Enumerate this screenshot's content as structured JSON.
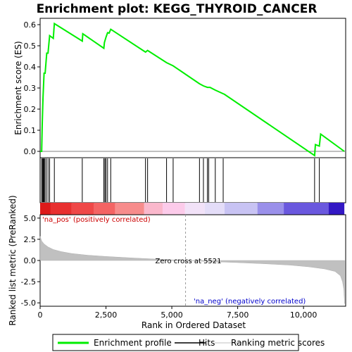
{
  "chart_data": {
    "type": "line",
    "title": "Enrichment plot: KEGG_THYROID_CANCER",
    "xlabel": "Rank in Ordered Dataset",
    "xlim": [
      0,
      11600
    ],
    "x_ticks": [
      0,
      2500,
      5000,
      7500,
      10000
    ],
    "x_tick_labels": [
      "0",
      "2,500",
      "5,000",
      "7,500",
      "10,000"
    ],
    "es_panel": {
      "ylabel": "Enrichment score (ES)",
      "ylim": [
        -0.03,
        0.63
      ],
      "y_ticks": [
        0.0,
        0.1,
        0.2,
        0.3,
        0.4,
        0.5,
        0.6
      ],
      "y_tick_labels": [
        "0.0",
        "0.1",
        "0.2",
        "0.3",
        "0.4",
        "0.5",
        "0.6"
      ],
      "series_color": "#00ee00",
      "points": [
        [
          0,
          0.0
        ],
        [
          60,
          0.0
        ],
        [
          80,
          0.13
        ],
        [
          110,
          0.255
        ],
        [
          150,
          0.37
        ],
        [
          190,
          0.37
        ],
        [
          250,
          0.465
        ],
        [
          300,
          0.465
        ],
        [
          360,
          0.548
        ],
        [
          500,
          0.535
        ],
        [
          540,
          0.605
        ],
        [
          1600,
          0.522
        ],
        [
          1620,
          0.557
        ],
        [
          2420,
          0.488
        ],
        [
          2440,
          0.515
        ],
        [
          2500,
          0.54
        ],
        [
          2560,
          0.562
        ],
        [
          2620,
          0.56
        ],
        [
          2680,
          0.578
        ],
        [
          4000,
          0.47
        ],
        [
          4080,
          0.478
        ],
        [
          4800,
          0.42
        ],
        [
          5050,
          0.405
        ],
        [
          6050,
          0.32
        ],
        [
          6200,
          0.31
        ],
        [
          6350,
          0.303
        ],
        [
          6450,
          0.303
        ],
        [
          6650,
          0.29
        ],
        [
          6950,
          0.273
        ],
        [
          7000,
          0.27
        ],
        [
          10420,
          -0.02
        ],
        [
          10450,
          0.032
        ],
        [
          10600,
          0.025
        ],
        [
          10650,
          0.082
        ],
        [
          11550,
          0.0
        ]
      ]
    },
    "hits": [
      60,
      90,
      120,
      150,
      180,
      230,
      300,
      360,
      540,
      1600,
      2420,
      2460,
      2500,
      2560,
      2680,
      4000,
      4080,
      4800,
      5050,
      6050,
      6200,
      6350,
      6400,
      6650,
      6950,
      10420,
      10600
    ],
    "ranking_panel": {
      "ylabel": "Ranked list metric (PreRanked)",
      "ylim": [
        -5.4,
        5.4
      ],
      "y_ticks": [
        5.0,
        2.5,
        0.0,
        -2.5,
        -5.0
      ],
      "y_tick_labels": [
        "5.0",
        "2.5",
        "0.0",
        "-2.5",
        "-5.0"
      ],
      "fill_color": "#c0c0c0",
      "curve": [
        [
          0,
          2.85
        ],
        [
          60,
          2.3
        ],
        [
          150,
          1.95
        ],
        [
          300,
          1.6
        ],
        [
          500,
          1.3
        ],
        [
          800,
          1.05
        ],
        [
          1200,
          0.82
        ],
        [
          1800,
          0.62
        ],
        [
          2500,
          0.47
        ],
        [
          3500,
          0.3
        ],
        [
          4500,
          0.15
        ],
        [
          5521,
          0.0
        ],
        [
          6500,
          -0.13
        ],
        [
          7500,
          -0.25
        ],
        [
          8500,
          -0.38
        ],
        [
          9500,
          -0.55
        ],
        [
          10200,
          -0.75
        ],
        [
          10800,
          -1.0
        ],
        [
          11200,
          -1.3
        ],
        [
          11400,
          -1.8
        ],
        [
          11480,
          -2.5
        ],
        [
          11530,
          -3.4
        ],
        [
          11560,
          -5.1
        ]
      ],
      "zero_cross_label": "Zero cross at 5521",
      "zero_cross_x": 5521,
      "pos_label": "'na_pos' (positively correlated)",
      "neg_label": "'na_neg' (negatively correlated)",
      "pos_label_color": "#cc0000",
      "neg_label_color": "#0000cc"
    },
    "heatmap_bands": [
      {
        "from": 0,
        "to": 400,
        "color": "#dd1a1a"
      },
      {
        "from": 400,
        "to": 1200,
        "color": "#e83030"
      },
      {
        "from": 1200,
        "to": 2050,
        "color": "#ef4848"
      },
      {
        "from": 2050,
        "to": 2850,
        "color": "#f46464"
      },
      {
        "from": 2850,
        "to": 3950,
        "color": "#f78c8c"
      },
      {
        "from": 3950,
        "to": 4650,
        "color": "#fab8cc"
      },
      {
        "from": 4650,
        "to": 5500,
        "color": "#fccbea"
      },
      {
        "from": 5500,
        "to": 6250,
        "color": "#f2e2f8"
      },
      {
        "from": 6250,
        "to": 7000,
        "color": "#e4ddf8"
      },
      {
        "from": 7000,
        "to": 8250,
        "color": "#c8c3f3"
      },
      {
        "from": 8250,
        "to": 9250,
        "color": "#9a90ea"
      },
      {
        "from": 9250,
        "to": 10950,
        "color": "#6a58de"
      },
      {
        "from": 10950,
        "to": 11550,
        "color": "#3318c4"
      }
    ],
    "legend": {
      "placement": "bottom",
      "items": [
        {
          "label": "Enrichment profile",
          "color": "#00ee00",
          "kind": "line"
        },
        {
          "label": "Hits",
          "color": "#000000",
          "kind": "line"
        },
        {
          "label": "Ranking metric scores",
          "color": "#c0c0c0",
          "kind": "line"
        }
      ]
    }
  }
}
